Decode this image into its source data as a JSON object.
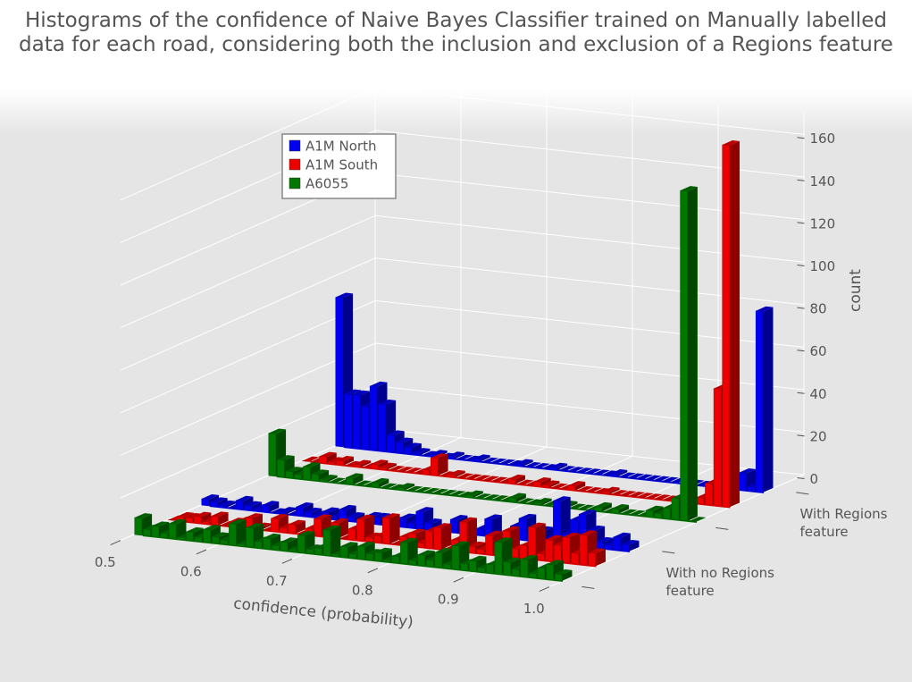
{
  "chart_data": {
    "type": "bar3d",
    "title": "Histograms of the confidence of Naive Bayes Classifier trained on Manually labelled data for each road, considering both the inclusion and exclusion of a Regions feature",
    "xlabel": "confidence (probability)",
    "zlabel": "count",
    "xlim": [
      0.5,
      1.0
    ],
    "xticks": [
      0.5,
      0.6,
      0.7,
      0.8,
      0.9,
      {
        "value": 1.0,
        "label": "1.0"
      }
    ],
    "zlim": [
      0,
      170
    ],
    "zticks": [
      0,
      20,
      40,
      60,
      80,
      100,
      120,
      140,
      160
    ],
    "grid": true,
    "legend": "upper left",
    "bins": [
      0.5,
      0.51,
      0.52,
      0.53,
      0.54,
      0.55,
      0.56,
      0.57,
      0.58,
      0.59,
      0.6,
      0.61,
      0.62,
      0.63,
      0.64,
      0.65,
      0.66,
      0.67,
      0.68,
      0.69,
      0.7,
      0.71,
      0.72,
      0.73,
      0.74,
      0.75,
      0.76,
      0.77,
      0.78,
      0.79,
      0.8,
      0.81,
      0.82,
      0.83,
      0.84,
      0.85,
      0.86,
      0.87,
      0.88,
      0.89,
      0.9,
      0.91,
      0.92,
      0.93,
      0.94,
      0.95,
      0.96,
      0.97,
      0.98,
      0.99,
      1.0
    ],
    "groups": [
      {
        "name": "With Regions feature",
        "series": [
          {
            "name": "A1M North",
            "color": "#0000ee",
            "values": [
              70,
              25,
              25,
              20,
              30,
              22,
              8,
              5,
              3,
              1,
              0,
              1,
              0,
              1,
              0,
              0,
              1,
              0,
              0,
              0,
              0,
              1,
              0,
              0,
              0,
              1,
              0,
              0,
              0,
              0,
              0,
              0,
              1,
              0,
              0,
              0,
              0,
              0,
              0,
              0,
              0,
              0,
              0,
              0,
              0,
              0,
              0,
              8,
              2,
              85
            ]
          },
          {
            "name": "A1M South",
            "color": "#ee0000",
            "values": [
              0,
              0,
              3,
              1,
              2,
              0,
              1,
              0,
              2,
              1,
              0,
              0,
              0,
              0,
              2,
              8,
              0,
              1,
              0,
              0,
              0,
              0,
              0,
              0,
              2,
              0,
              0,
              2,
              1,
              0,
              0,
              2,
              0,
              0,
              0,
              1,
              0,
              0,
              0,
              0,
              0,
              0,
              0,
              0,
              2,
              0,
              3,
              10,
              55,
              170
            ]
          },
          {
            "name": "A6055",
            "color": "#007700",
            "values": [
              20,
              8,
              3,
              2,
              6,
              3,
              1,
              0,
              0,
              3,
              0,
              0,
              2,
              0,
              0,
              1,
              0,
              0,
              0,
              0,
              0,
              0,
              0,
              1,
              0,
              0,
              0,
              0,
              2,
              0,
              0,
              1,
              0,
              0,
              1,
              0,
              0,
              0,
              2,
              0,
              2,
              0,
              0,
              0,
              3,
              2,
              5,
              10,
              155,
              0
            ]
          }
        ]
      },
      {
        "name": "With no Regions feature",
        "series": [
          {
            "name": "A1M North",
            "color": "#0000ee",
            "values": [
              3,
              2,
              1,
              0,
              4,
              2,
              1,
              3,
              0,
              1,
              0,
              4,
              2,
              1,
              3,
              1,
              5,
              2,
              0,
              3,
              3,
              1,
              2,
              4,
              2,
              8,
              3,
              0,
              2,
              6,
              5,
              0,
              3,
              8,
              0,
              2,
              6,
              10,
              3,
              5,
              2,
              20,
              5,
              12,
              15,
              8,
              3,
              2,
              6,
              3
            ]
          },
          {
            "name": "A1M South",
            "color": "#ee0000",
            "values": [
              0,
              2,
              2,
              3,
              1,
              4,
              0,
              2,
              3,
              5,
              1,
              0,
              6,
              2,
              4,
              0,
              3,
              8,
              1,
              7,
              0,
              5,
              10,
              2,
              3,
              12,
              0,
              4,
              6,
              2,
              8,
              10,
              0,
              5,
              14,
              3,
              2,
              9,
              5,
              12,
              4,
              6,
              15,
              3,
              10,
              8,
              12,
              5,
              14,
              6
            ]
          },
          {
            "name": "A6055",
            "color": "#007700",
            "values": [
              8,
              3,
              5,
              2,
              7,
              1,
              4,
              2,
              6,
              3,
              2,
              10,
              1,
              9,
              3,
              5,
              2,
              4,
              1,
              8,
              2,
              3,
              12,
              1,
              5,
              2,
              6,
              3,
              4,
              1,
              3,
              10,
              2,
              5,
              3,
              7,
              2,
              11,
              3,
              5,
              2,
              4,
              15,
              6,
              3,
              8,
              2,
              5,
              7,
              3
            ]
          }
        ]
      }
    ]
  }
}
